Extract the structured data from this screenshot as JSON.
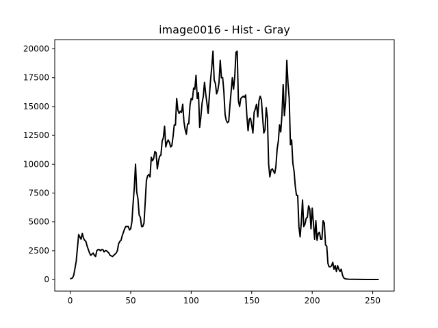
{
  "chart_data": {
    "type": "line",
    "title": "image0016 - Hist - Gray",
    "xlabel": "",
    "ylabel": "",
    "xlim": [
      -12.75,
      267.75
    ],
    "ylim": [
      -1000,
      20800
    ],
    "x_ticks": [
      0,
      50,
      100,
      150,
      200,
      250
    ],
    "y_ticks": [
      0,
      2500,
      5000,
      7500,
      10000,
      12500,
      15000,
      17500,
      20000
    ],
    "grid": false,
    "series": [
      {
        "color": "#000000",
        "points": [
          [
            0,
            50
          ],
          [
            2,
            150
          ],
          [
            3,
            400
          ],
          [
            5,
            1600
          ],
          [
            7,
            3900
          ],
          [
            8,
            3700
          ],
          [
            9,
            3500
          ],
          [
            10,
            4000
          ],
          [
            11,
            3600
          ],
          [
            12,
            3400
          ],
          [
            13,
            3300
          ],
          [
            14,
            2900
          ],
          [
            15,
            2600
          ],
          [
            16,
            2300
          ],
          [
            17,
            2100
          ],
          [
            18,
            2200
          ],
          [
            19,
            2300
          ],
          [
            20,
            2100
          ],
          [
            21,
            2000
          ],
          [
            22,
            2500
          ],
          [
            23,
            2600
          ],
          [
            24,
            2600
          ],
          [
            25,
            2500
          ],
          [
            26,
            2600
          ],
          [
            27,
            2600
          ],
          [
            28,
            2400
          ],
          [
            29,
            2500
          ],
          [
            30,
            2500
          ],
          [
            31,
            2400
          ],
          [
            32,
            2300
          ],
          [
            33,
            2100
          ],
          [
            34,
            2050
          ],
          [
            35,
            2000
          ],
          [
            36,
            2100
          ],
          [
            37,
            2200
          ],
          [
            38,
            2300
          ],
          [
            39,
            2500
          ],
          [
            40,
            3100
          ],
          [
            41,
            3300
          ],
          [
            42,
            3400
          ],
          [
            43,
            3800
          ],
          [
            44,
            4100
          ],
          [
            45,
            4400
          ],
          [
            46,
            4600
          ],
          [
            47,
            4600
          ],
          [
            48,
            4600
          ],
          [
            49,
            4300
          ],
          [
            50,
            4400
          ],
          [
            51,
            5000
          ],
          [
            52,
            6600
          ],
          [
            53,
            8000
          ],
          [
            54,
            10000
          ],
          [
            55,
            7600
          ],
          [
            56,
            7000
          ],
          [
            57,
            5600
          ],
          [
            58,
            5400
          ],
          [
            59,
            4600
          ],
          [
            60,
            4600
          ],
          [
            61,
            4900
          ],
          [
            62,
            6700
          ],
          [
            63,
            8600
          ],
          [
            64,
            9000
          ],
          [
            65,
            9100
          ],
          [
            66,
            8900
          ],
          [
            67,
            10600
          ],
          [
            68,
            10300
          ],
          [
            69,
            10500
          ],
          [
            70,
            11100
          ],
          [
            71,
            11000
          ],
          [
            72,
            9600
          ],
          [
            73,
            10300
          ],
          [
            74,
            10700
          ],
          [
            75,
            10800
          ],
          [
            76,
            12000
          ],
          [
            77,
            12300
          ],
          [
            78,
            13300
          ],
          [
            79,
            11500
          ],
          [
            80,
            11900
          ],
          [
            81,
            12100
          ],
          [
            82,
            11900
          ],
          [
            83,
            11500
          ],
          [
            84,
            11600
          ],
          [
            85,
            12400
          ],
          [
            86,
            13400
          ],
          [
            87,
            13400
          ],
          [
            88,
            15700
          ],
          [
            89,
            14700
          ],
          [
            90,
            14400
          ],
          [
            91,
            14600
          ],
          [
            92,
            14500
          ],
          [
            93,
            15200
          ],
          [
            94,
            13700
          ],
          [
            95,
            13000
          ],
          [
            96,
            12600
          ],
          [
            97,
            13500
          ],
          [
            98,
            13500
          ],
          [
            99,
            15100
          ],
          [
            100,
            15700
          ],
          [
            101,
            15600
          ],
          [
            102,
            16600
          ],
          [
            103,
            16500
          ],
          [
            104,
            17700
          ],
          [
            105,
            15700
          ],
          [
            106,
            16200
          ],
          [
            107,
            13200
          ],
          [
            108,
            14100
          ],
          [
            109,
            15300
          ],
          [
            110,
            15900
          ],
          [
            111,
            17100
          ],
          [
            112,
            16100
          ],
          [
            113,
            15300
          ],
          [
            114,
            14400
          ],
          [
            115,
            15900
          ],
          [
            116,
            17300
          ],
          [
            117,
            18400
          ],
          [
            118,
            19800
          ],
          [
            119,
            17300
          ],
          [
            120,
            17000
          ],
          [
            121,
            16100
          ],
          [
            122,
            16400
          ],
          [
            123,
            17100
          ],
          [
            124,
            19000
          ],
          [
            125,
            17500
          ],
          [
            126,
            17500
          ],
          [
            127,
            16300
          ],
          [
            128,
            14300
          ],
          [
            129,
            13800
          ],
          [
            130,
            13600
          ],
          [
            131,
            13700
          ],
          [
            132,
            15100
          ],
          [
            133,
            16300
          ],
          [
            134,
            17500
          ],
          [
            135,
            16500
          ],
          [
            136,
            17600
          ],
          [
            137,
            19700
          ],
          [
            138,
            19800
          ],
          [
            139,
            15500
          ],
          [
            140,
            15000
          ],
          [
            141,
            15700
          ],
          [
            142,
            15800
          ],
          [
            143,
            15900
          ],
          [
            144,
            15800
          ],
          [
            145,
            16000
          ],
          [
            146,
            14200
          ],
          [
            147,
            12900
          ],
          [
            148,
            13900
          ],
          [
            149,
            14000
          ],
          [
            150,
            13400
          ],
          [
            151,
            12700
          ],
          [
            152,
            14500
          ],
          [
            153,
            14800
          ],
          [
            154,
            15200
          ],
          [
            155,
            14100
          ],
          [
            156,
            15500
          ],
          [
            157,
            15900
          ],
          [
            158,
            15600
          ],
          [
            159,
            14100
          ],
          [
            160,
            12700
          ],
          [
            161,
            13000
          ],
          [
            162,
            14900
          ],
          [
            163,
            14000
          ],
          [
            164,
            10000
          ],
          [
            165,
            8900
          ],
          [
            166,
            9500
          ],
          [
            167,
            9600
          ],
          [
            168,
            9400
          ],
          [
            169,
            9200
          ],
          [
            170,
            9800
          ],
          [
            171,
            11300
          ],
          [
            172,
            12000
          ],
          [
            173,
            13400
          ],
          [
            174,
            12800
          ],
          [
            175,
            14300
          ],
          [
            176,
            16900
          ],
          [
            177,
            14200
          ],
          [
            178,
            15400
          ],
          [
            179,
            19000
          ],
          [
            180,
            17000
          ],
          [
            181,
            15700
          ],
          [
            182,
            11700
          ],
          [
            183,
            12100
          ],
          [
            184,
            10100
          ],
          [
            185,
            9400
          ],
          [
            186,
            8100
          ],
          [
            187,
            7300
          ],
          [
            188,
            7300
          ],
          [
            189,
            4600
          ],
          [
            190,
            3700
          ],
          [
            191,
            5000
          ],
          [
            192,
            6900
          ],
          [
            193,
            4600
          ],
          [
            194,
            4800
          ],
          [
            195,
            5300
          ],
          [
            196,
            5400
          ],
          [
            197,
            6400
          ],
          [
            198,
            6100
          ],
          [
            199,
            4400
          ],
          [
            200,
            6200
          ],
          [
            201,
            4900
          ],
          [
            202,
            3500
          ],
          [
            203,
            5100
          ],
          [
            204,
            3400
          ],
          [
            205,
            4000
          ],
          [
            206,
            4100
          ],
          [
            207,
            3500
          ],
          [
            208,
            3500
          ],
          [
            209,
            5100
          ],
          [
            210,
            4900
          ],
          [
            211,
            3000
          ],
          [
            212,
            2900
          ],
          [
            213,
            1400
          ],
          [
            214,
            1100
          ],
          [
            215,
            1100
          ],
          [
            216,
            1200
          ],
          [
            217,
            1500
          ],
          [
            218,
            900
          ],
          [
            219,
            1200
          ],
          [
            220,
            700
          ],
          [
            221,
            1200
          ],
          [
            222,
            900
          ],
          [
            223,
            700
          ],
          [
            224,
            900
          ],
          [
            225,
            400
          ],
          [
            226,
            150
          ],
          [
            227,
            80
          ],
          [
            228,
            50
          ],
          [
            230,
            30
          ],
          [
            235,
            20
          ],
          [
            240,
            15
          ],
          [
            245,
            10
          ],
          [
            250,
            8
          ],
          [
            255,
            5
          ]
        ]
      }
    ]
  }
}
